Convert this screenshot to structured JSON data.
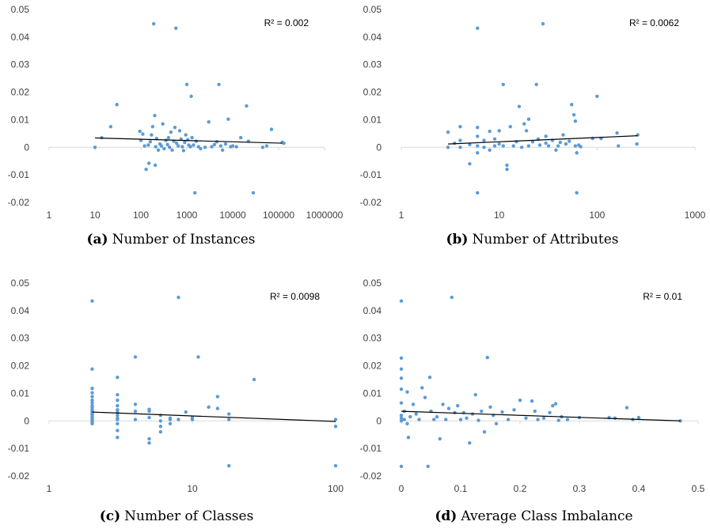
{
  "chart_data": [
    {
      "type": "scatter",
      "caption_letter": "(a)",
      "caption_text": "Number of Instances",
      "x_scale": "log",
      "xlim": [
        1,
        1000000
      ],
      "xticks": [
        1,
        10,
        100,
        1000,
        10000,
        100000,
        1000000
      ],
      "xtick_labels": [
        "1",
        "10",
        "100",
        "1000",
        "10000",
        "100000",
        "1000000"
      ],
      "ylim": [
        -0.02,
        0.05
      ],
      "yticks": [
        -0.02,
        -0.01,
        0,
        0.01,
        0.02,
        0.03,
        0.04,
        0.05
      ],
      "ytick_labels": [
        "-0.02",
        "-0.01",
        "0",
        "0.01",
        "0.02",
        "0.03",
        "0.04",
        "0.05"
      ],
      "r2_label": "R² = 0.002",
      "trendline": {
        "x": [
          10,
          120000
        ],
        "y": [
          0.0034,
          0.0015
        ]
      },
      "grid": false,
      "marker_color": "#5B9BD5",
      "points": [
        [
          10,
          0
        ],
        [
          14,
          0.0035
        ],
        [
          22,
          0.0075
        ],
        [
          30,
          0.0155
        ],
        [
          95,
          0.0058
        ],
        [
          100,
          0.0025
        ],
        [
          110,
          0.0048
        ],
        [
          120,
          0.0005
        ],
        [
          130,
          -0.008
        ],
        [
          145,
          0.0008
        ],
        [
          150,
          -0.0058
        ],
        [
          160,
          0.002
        ],
        [
          170,
          0.0045
        ],
        [
          180,
          0.0075
        ],
        [
          190,
          0.0448
        ],
        [
          200,
          0.0115
        ],
        [
          205,
          -0.0065
        ],
        [
          210,
          0.0002
        ],
        [
          220,
          0.0032
        ],
        [
          240,
          -0.001
        ],
        [
          260,
          0.0012
        ],
        [
          280,
          0.0005
        ],
        [
          300,
          0.0085
        ],
        [
          320,
          -0.0005
        ],
        [
          350,
          0.0025
        ],
        [
          380,
          0.001
        ],
        [
          400,
          0.0035
        ],
        [
          420,
          0
        ],
        [
          450,
          0.0055
        ],
        [
          480,
          -0.001
        ],
        [
          520,
          0.0022
        ],
        [
          550,
          0.0072
        ],
        [
          580,
          0.0432
        ],
        [
          600,
          0.0015
        ],
        [
          650,
          0.0005
        ],
        [
          700,
          0.006
        ],
        [
          750,
          0.003
        ],
        [
          800,
          0.0002
        ],
        [
          850,
          -0.0012
        ],
        [
          900,
          0.0018
        ],
        [
          950,
          0.0045
        ],
        [
          1000,
          0.0228
        ],
        [
          1050,
          0.0028
        ],
        [
          1100,
          0.0008
        ],
        [
          1200,
          0.0002
        ],
        [
          1250,
          0.0185
        ],
        [
          1300,
          0.0035
        ],
        [
          1400,
          0.0008
        ],
        [
          1500,
          -0.0165
        ],
        [
          1600,
          0.0022
        ],
        [
          1800,
          0.0002
        ],
        [
          2000,
          -0.0005
        ],
        [
          2500,
          0
        ],
        [
          3000,
          0.0092
        ],
        [
          3500,
          0.0002
        ],
        [
          4000,
          0.001
        ],
        [
          4500,
          0.002
        ],
        [
          5000,
          0.0228
        ],
        [
          5500,
          0.0005
        ],
        [
          6000,
          -0.001
        ],
        [
          7000,
          0.0012
        ],
        [
          8000,
          0.0102
        ],
        [
          9000,
          0.0002
        ],
        [
          10000,
          0.0005
        ],
        [
          12000,
          0.0002
        ],
        [
          15000,
          0.0035
        ],
        [
          20000,
          0.015
        ],
        [
          22000,
          0.0022
        ],
        [
          28000,
          -0.0165
        ],
        [
          45000,
          0
        ],
        [
          55000,
          0.0005
        ],
        [
          70000,
          0.0065
        ],
        [
          120000,
          0.0018
        ],
        [
          130000,
          0.0015
        ]
      ]
    },
    {
      "type": "scatter",
      "caption_letter": "(b)",
      "caption_text": "Number of Attributes",
      "x_scale": "log",
      "xlim": [
        1,
        1000
      ],
      "xticks": [
        1,
        10,
        100,
        1000
      ],
      "xtick_labels": [
        "1",
        "10",
        "100",
        "1000"
      ],
      "ylim": [
        -0.02,
        0.05
      ],
      "yticks": [
        -0.02,
        -0.01,
        0,
        0.01,
        0.02,
        0.03,
        0.04,
        0.05
      ],
      "ytick_labels": [
        "-0.02",
        "-0.01",
        "0",
        "0.01",
        "0.02",
        "0.03",
        "0.04",
        "0.05"
      ],
      "r2_label": "R² = 0.0062",
      "trendline": {
        "x": [
          3,
          260
        ],
        "y": [
          0.0012,
          0.0042
        ]
      },
      "grid": false,
      "marker_color": "#5B9BD5",
      "points": [
        [
          3,
          0.0055
        ],
        [
          3,
          0
        ],
        [
          3.5,
          0.0015
        ],
        [
          4,
          0.0075
        ],
        [
          4,
          0.0025
        ],
        [
          4,
          0
        ],
        [
          5,
          -0.006
        ],
        [
          5,
          0.001
        ],
        [
          6,
          0.0432
        ],
        [
          6,
          0.0072
        ],
        [
          6,
          0.004
        ],
        [
          6,
          -0.0165
        ],
        [
          6,
          -0.002
        ],
        [
          6,
          0.0005
        ],
        [
          7,
          0.0025
        ],
        [
          7,
          0
        ],
        [
          8,
          0.0058
        ],
        [
          8,
          -0.001
        ],
        [
          9,
          0.003
        ],
        [
          9,
          0.0005
        ],
        [
          10,
          0.0012
        ],
        [
          10,
          0.006
        ],
        [
          11,
          0.0228
        ],
        [
          11,
          0.0005
        ],
        [
          12,
          -0.008
        ],
        [
          12,
          -0.0065
        ],
        [
          13,
          0.0075
        ],
        [
          14,
          0.0005
        ],
        [
          15,
          0.002
        ],
        [
          16,
          0.0148
        ],
        [
          17,
          0
        ],
        [
          18,
          0.0085
        ],
        [
          19,
          0.006
        ],
        [
          20,
          0.0102
        ],
        [
          20,
          0.0005
        ],
        [
          22,
          0.002
        ],
        [
          24,
          0.0228
        ],
        [
          25,
          0.003
        ],
        [
          26,
          0.0008
        ],
        [
          28,
          0.0448
        ],
        [
          30,
          0.004
        ],
        [
          30,
          0.0015
        ],
        [
          32,
          0.0005
        ],
        [
          35,
          0.0025
        ],
        [
          38,
          -0.001
        ],
        [
          40,
          0.0005
        ],
        [
          42,
          0.0018
        ],
        [
          45,
          0.0045
        ],
        [
          48,
          0.0012
        ],
        [
          52,
          0.0022
        ],
        [
          55,
          0.0155
        ],
        [
          58,
          0.0118
        ],
        [
          60,
          0.0095
        ],
        [
          60,
          0.0005
        ],
        [
          62,
          -0.0165
        ],
        [
          62,
          -0.002
        ],
        [
          65,
          0.0008
        ],
        [
          68,
          0.0002
        ],
        [
          90,
          0.0032
        ],
        [
          100,
          0.0185
        ],
        [
          110,
          0.0032
        ],
        [
          160,
          0.0052
        ],
        [
          165,
          0.0005
        ],
        [
          260,
          0.0045
        ],
        [
          255,
          0.0012
        ]
      ]
    },
    {
      "type": "scatter",
      "caption_letter": "(c)",
      "caption_text": "Number of Classes",
      "x_scale": "log",
      "xlim": [
        1,
        100
      ],
      "xticks": [
        1,
        10,
        100
      ],
      "xtick_labels": [
        "1",
        "10",
        "100"
      ],
      "ylim": [
        -0.02,
        0.05
      ],
      "yticks": [
        -0.02,
        -0.01,
        0,
        0.01,
        0.02,
        0.03,
        0.04,
        0.05
      ],
      "ytick_labels": [
        "-0.02",
        "-0.01",
        "0",
        "0.01",
        "0.02",
        "0.03",
        "0.04",
        "0.05"
      ],
      "r2_label": "R² = 0.0098",
      "trendline": {
        "x": [
          2,
          100
        ],
        "y": [
          0.0032,
          -0.0002
        ]
      },
      "grid": false,
      "marker_color": "#5B9BD5",
      "points": [
        [
          2,
          0.0435
        ],
        [
          2,
          0.0188
        ],
        [
          2,
          0.0118
        ],
        [
          2,
          0.0102
        ],
        [
          2,
          0.0088
        ],
        [
          2,
          0.0075
        ],
        [
          2,
          0.0065
        ],
        [
          2,
          0.0055
        ],
        [
          2,
          0.0048
        ],
        [
          2,
          0.004
        ],
        [
          2,
          0.0035
        ],
        [
          2,
          0.003
        ],
        [
          2,
          0.0025
        ],
        [
          2,
          0.002
        ],
        [
          2,
          0.0015
        ],
        [
          2,
          0.001
        ],
        [
          2,
          0.0005
        ],
        [
          2,
          0
        ],
        [
          2,
          -0.0005
        ],
        [
          2,
          -0.001
        ],
        [
          3,
          0.0158
        ],
        [
          3,
          0.0095
        ],
        [
          3,
          0.0075
        ],
        [
          3,
          0.0055
        ],
        [
          3,
          0.004
        ],
        [
          3,
          0.003
        ],
        [
          3,
          0.002
        ],
        [
          3,
          0.001
        ],
        [
          3,
          0.0005
        ],
        [
          3,
          -0.001
        ],
        [
          3,
          -0.0035
        ],
        [
          3,
          -0.006
        ],
        [
          4,
          0.0232
        ],
        [
          4,
          0.006
        ],
        [
          4,
          0.0035
        ],
        [
          4,
          0.0005
        ],
        [
          5,
          0.0042
        ],
        [
          5,
          0.0035
        ],
        [
          5,
          0.0012
        ],
        [
          5,
          -0.0065
        ],
        [
          5,
          -0.008
        ],
        [
          6,
          0.002
        ],
        [
          6,
          0
        ],
        [
          6,
          -0.002
        ],
        [
          6,
          -0.004
        ],
        [
          7,
          0.001
        ],
        [
          7,
          0.0005
        ],
        [
          7,
          -0.001
        ],
        [
          8,
          0.0448
        ],
        [
          8,
          0.0005
        ],
        [
          9,
          0.0032
        ],
        [
          10,
          0.0012
        ],
        [
          10,
          0.0005
        ],
        [
          11,
          0.0232
        ],
        [
          13,
          0.005
        ],
        [
          15,
          0.0088
        ],
        [
          15,
          0.0045
        ],
        [
          18,
          0.0025
        ],
        [
          18,
          0.0005
        ],
        [
          18,
          -0.0163
        ],
        [
          27,
          0.015
        ],
        [
          100,
          0.0005
        ],
        [
          100,
          -0.002
        ],
        [
          100,
          -0.0163
        ]
      ]
    },
    {
      "type": "scatter",
      "caption_letter": "(d)",
      "caption_text": "Average Class Imbalance",
      "x_scale": "linear",
      "xlim": [
        0,
        0.5
      ],
      "xticks": [
        0,
        0.1,
        0.2,
        0.3,
        0.4,
        0.5
      ],
      "xtick_labels": [
        "0",
        "0.1",
        "0.2",
        "0.3",
        "0.4",
        "0.5"
      ],
      "ylim": [
        -0.02,
        0.05
      ],
      "yticks": [
        -0.02,
        -0.01,
        0,
        0.01,
        0.02,
        0.03,
        0.04,
        0.05
      ],
      "ytick_labels": [
        "-0.02",
        "-0.01",
        "0",
        "0.01",
        "0.02",
        "0.03",
        "0.04",
        "0.05"
      ],
      "r2_label": "R² = 0.01",
      "trendline": {
        "x": [
          0,
          0.47
        ],
        "y": [
          0.0035,
          0.0
        ]
      },
      "grid": false,
      "marker_color": "#5B9BD5",
      "points": [
        [
          0,
          0.0435
        ],
        [
          0,
          0.0228
        ],
        [
          0,
          0.0188
        ],
        [
          0,
          0.0155
        ],
        [
          0,
          0.0115
        ],
        [
          0,
          0.0065
        ],
        [
          0,
          0.002
        ],
        [
          0,
          0.001
        ],
        [
          0,
          0
        ],
        [
          0,
          -0.0165
        ],
        [
          0.005,
          0.0035
        ],
        [
          0.005,
          0.0005
        ],
        [
          0.01,
          0.0105
        ],
        [
          0.01,
          -0.001
        ],
        [
          0.012,
          -0.006
        ],
        [
          0.015,
          0.0015
        ],
        [
          0.02,
          0.006
        ],
        [
          0.025,
          0.0025
        ],
        [
          0.03,
          0.0005
        ],
        [
          0.035,
          0.012
        ],
        [
          0.04,
          0.0085
        ],
        [
          0.045,
          -0.0165
        ],
        [
          0.048,
          0.0158
        ],
        [
          0.05,
          0.0035
        ],
        [
          0.055,
          0.0005
        ],
        [
          0.06,
          0.0015
        ],
        [
          0.065,
          -0.0065
        ],
        [
          0.07,
          0.006
        ],
        [
          0.075,
          0.0005
        ],
        [
          0.08,
          0.0045
        ],
        [
          0.085,
          0.0448
        ],
        [
          0.09,
          0.003
        ],
        [
          0.095,
          0.0055
        ],
        [
          0.1,
          0.0005
        ],
        [
          0.105,
          0.003
        ],
        [
          0.11,
          0.001
        ],
        [
          0.115,
          -0.008
        ],
        [
          0.12,
          0.0025
        ],
        [
          0.125,
          0.0095
        ],
        [
          0.13,
          0.0002
        ],
        [
          0.135,
          0.0035
        ],
        [
          0.14,
          -0.004
        ],
        [
          0.145,
          0.023
        ],
        [
          0.15,
          0.005
        ],
        [
          0.155,
          0.002
        ],
        [
          0.16,
          -0.001
        ],
        [
          0.17,
          0.0032
        ],
        [
          0.18,
          0.0005
        ],
        [
          0.19,
          0.004
        ],
        [
          0.2,
          0.0075
        ],
        [
          0.21,
          0.001
        ],
        [
          0.22,
          0.0072
        ],
        [
          0.225,
          0.0035
        ],
        [
          0.23,
          0.0005
        ],
        [
          0.24,
          0.001
        ],
        [
          0.25,
          0.003
        ],
        [
          0.255,
          0.0055
        ],
        [
          0.26,
          0.0062
        ],
        [
          0.265,
          0.0002
        ],
        [
          0.27,
          0.0015
        ],
        [
          0.28,
          0.0005
        ],
        [
          0.3,
          0.0012
        ],
        [
          0.35,
          0.0012
        ],
        [
          0.36,
          0.001
        ],
        [
          0.38,
          0.0048
        ],
        [
          0.39,
          0.0005
        ],
        [
          0.4,
          0.0012
        ],
        [
          0.47,
          0
        ]
      ]
    }
  ]
}
